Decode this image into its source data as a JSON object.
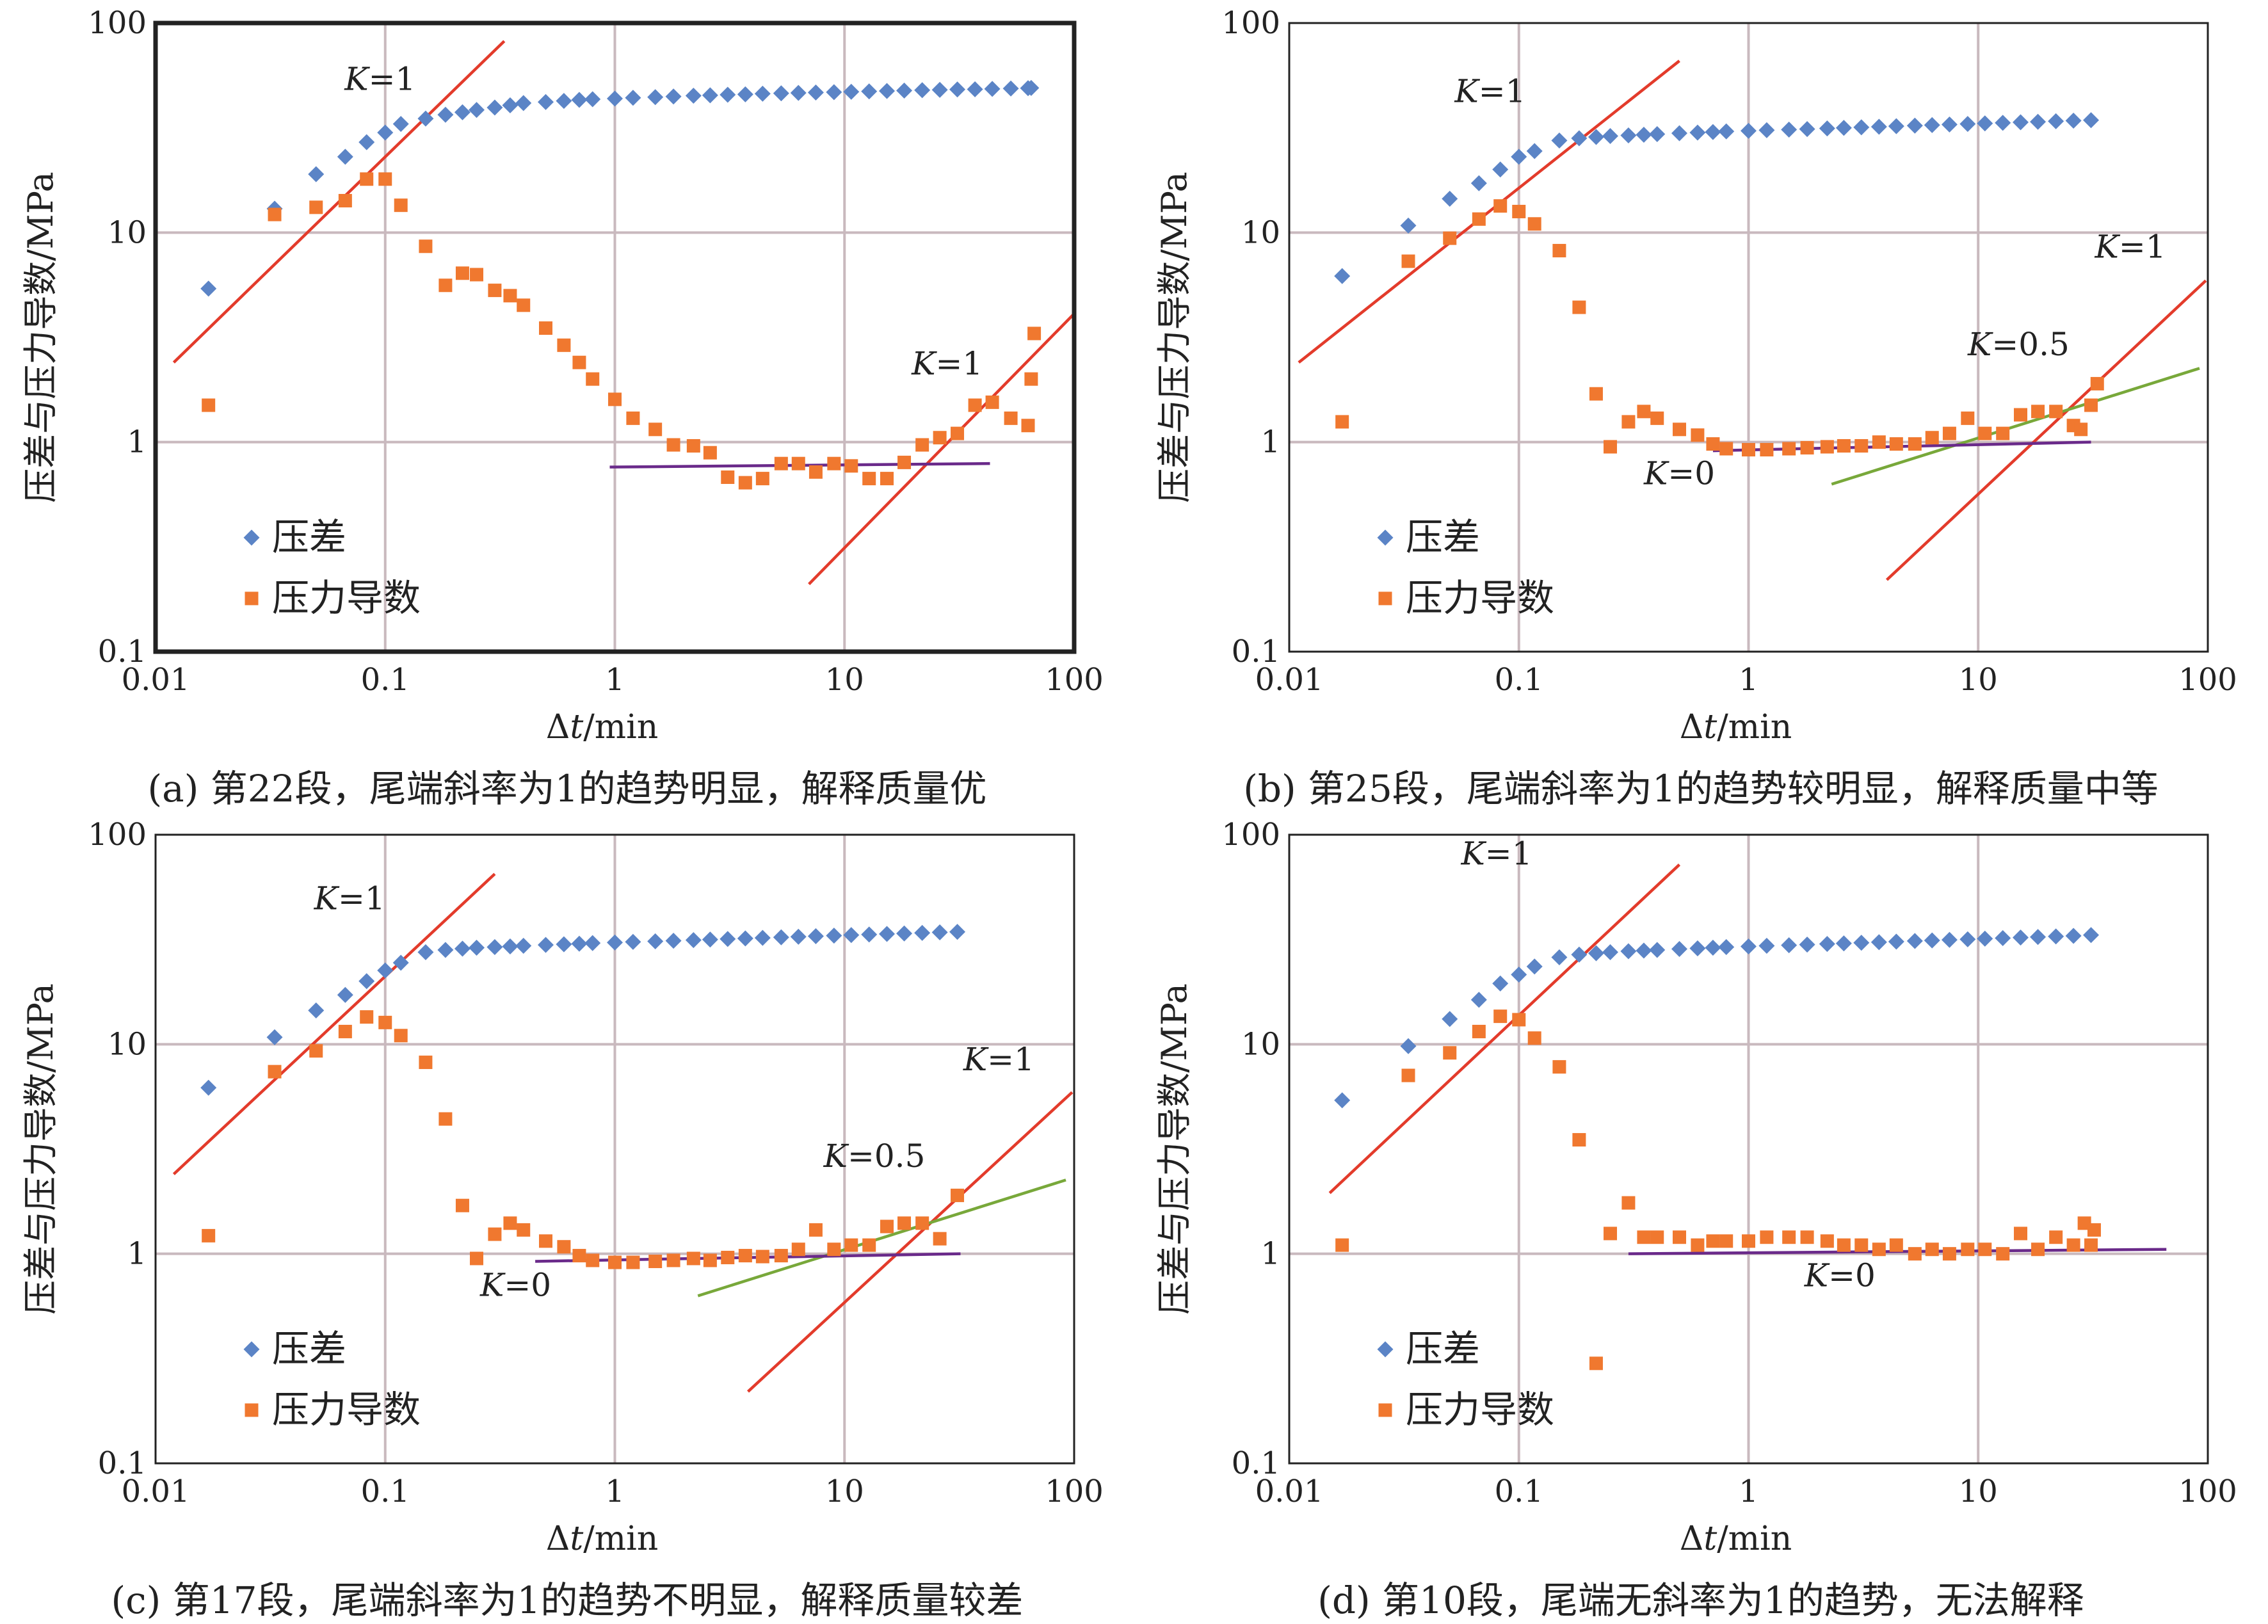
{
  "colors": {
    "pressure_diff": "#5b84c6",
    "pressure_derivative": "#f0782f",
    "slope_1": "#e33b2b",
    "slope_half": "#78a83a",
    "slope_0": "#6a2a8a",
    "gridline": "#c9b9be",
    "axis": "#222222"
  },
  "chart_data": [
    {
      "type": "scatter",
      "scale": "log-log",
      "xlabel_prefix": "Δ",
      "xlabel_var": "t",
      "xlabel_suffix": "/min",
      "ylabel": "压差与压力导数/MPa",
      "xlim": [
        0.01,
        100
      ],
      "ylim": [
        0.1,
        100
      ],
      "x_ticks": [
        "0.01",
        "0.1",
        "1",
        "10",
        "100"
      ],
      "y_ticks": [
        "0.1",
        "1",
        "10",
        "100"
      ],
      "grid": true,
      "legend_position": "left-middle",
      "frame": "heavy",
      "caption": "(a) 第22段，尾端斜率为1的趋势明显，解释质量优",
      "series": [
        {
          "name": "压差",
          "marker": "diamond",
          "color": "#5b84c6",
          "x": [
            0.017,
            0.033,
            0.05,
            0.067,
            0.083,
            0.1,
            0.117,
            0.15,
            0.183,
            0.217,
            0.25,
            0.3,
            0.35,
            0.4,
            0.5,
            0.6,
            0.7,
            0.8,
            1.0,
            1.2,
            1.5,
            1.8,
            2.2,
            2.6,
            3.1,
            3.7,
            4.4,
            5.3,
            6.3,
            7.5,
            9.0,
            10.7,
            12.8,
            15.3,
            18.2,
            21.8,
            26,
            31,
            37,
            44,
            53,
            63,
            65
          ],
          "y": [
            5.4,
            13,
            19,
            23,
            27,
            30,
            33,
            35,
            36.5,
            37.5,
            38.5,
            39.5,
            40.5,
            41.5,
            42,
            42.5,
            43,
            43.3,
            43.6,
            44,
            44.3,
            44.6,
            45,
            45.2,
            45.5,
            45.7,
            46,
            46.2,
            46.4,
            46.6,
            46.8,
            47,
            47.2,
            47.4,
            47.6,
            47.8,
            48,
            48.2,
            48.3,
            48.5,
            48.7,
            48.9,
            49
          ]
        },
        {
          "name": "压力导数",
          "marker": "square",
          "color": "#f0782f",
          "x": [
            0.017,
            0.033,
            0.05,
            0.067,
            0.083,
            0.1,
            0.117,
            0.15,
            0.183,
            0.217,
            0.25,
            0.3,
            0.35,
            0.4,
            0.5,
            0.6,
            0.7,
            0.8,
            1.0,
            1.2,
            1.5,
            1.8,
            2.2,
            2.6,
            3.1,
            3.7,
            4.4,
            5.3,
            6.3,
            7.5,
            9.0,
            10.7,
            12.8,
            15.3,
            18.2,
            21.8,
            26,
            31,
            37,
            44,
            53,
            63,
            65
          ],
          "y": [
            1.5,
            12.2,
            13.2,
            14.2,
            18,
            18,
            13.5,
            8.6,
            5.6,
            6.4,
            6.3,
            5.3,
            5.0,
            4.5,
            3.5,
            2.9,
            2.4,
            2.0,
            1.6,
            1.3,
            1.15,
            0.97,
            0.96,
            0.89,
            0.68,
            0.64,
            0.67,
            0.79,
            0.79,
            0.72,
            0.79,
            0.77,
            0.67,
            0.67,
            0.8,
            0.97,
            1.05,
            1.1,
            1.5,
            1.55,
            1.3,
            1.2,
            2.0
          ]
        },
        {
          "name": "",
          "marker": "square",
          "color": "#f0782f",
          "x": [
            67
          ],
          "y": [
            3.3
          ]
        }
      ],
      "lines": [
        {
          "color": "#e33b2b",
          "from": [
            0.012,
            2.4
          ],
          "to": [
            0.33,
            82
          ]
        },
        {
          "color": "#e33b2b",
          "from": [
            7,
            0.21
          ],
          "to": [
            100,
            4.1
          ]
        },
        {
          "color": "#6a2a8a",
          "from": [
            0.95,
            0.76
          ],
          "to": [
            43,
            0.79
          ]
        }
      ],
      "annotations": [
        {
          "text_italic": "K",
          "text": "=1",
          "at": [
            0.095,
            48
          ]
        },
        {
          "text_italic": "K",
          "text": "=1",
          "at": [
            28,
            2.1
          ]
        }
      ]
    },
    {
      "type": "scatter",
      "scale": "log-log",
      "xlabel_prefix": "Δ",
      "xlabel_var": "t",
      "xlabel_suffix": "/min",
      "ylabel": "压差与压力导数/MPa",
      "xlim": [
        0.01,
        100
      ],
      "ylim": [
        0.1,
        100
      ],
      "x_ticks": [
        "0.01",
        "0.1",
        "1",
        "10",
        "100"
      ],
      "y_ticks": [
        "0.1",
        "1",
        "10",
        "100"
      ],
      "grid": true,
      "legend_position": "left-middle",
      "frame": "light",
      "caption": "(b) 第25段，尾端斜率为1的趋势较明显，解释质量中等",
      "series": [
        {
          "name": "压差",
          "marker": "diamond",
          "color": "#5b84c6",
          "x": [
            0.017,
            0.033,
            0.05,
            0.067,
            0.083,
            0.1,
            0.117,
            0.15,
            0.183,
            0.217,
            0.25,
            0.3,
            0.35,
            0.4,
            0.5,
            0.6,
            0.7,
            0.8,
            1.0,
            1.2,
            1.5,
            1.8,
            2.2,
            2.6,
            3.1,
            3.7,
            4.4,
            5.3,
            6.3,
            7.5,
            9.0,
            10.7,
            12.8,
            15.3,
            18.2,
            21.8,
            26,
            31
          ],
          "y": [
            6.2,
            10.8,
            14.5,
            17.2,
            20,
            23,
            24.5,
            27.5,
            28.2,
            28.6,
            28.9,
            29.1,
            29.3,
            29.5,
            29.8,
            30,
            30.2,
            30.4,
            30.6,
            30.8,
            31,
            31.2,
            31.4,
            31.6,
            31.8,
            32,
            32.2,
            32.4,
            32.6,
            32.8,
            33,
            33.2,
            33.4,
            33.6,
            33.8,
            34,
            34.2,
            34.4
          ]
        },
        {
          "name": "压力导数",
          "marker": "square",
          "color": "#f0782f",
          "x": [
            0.017,
            0.033,
            0.05,
            0.067,
            0.083,
            0.1,
            0.117,
            0.15,
            0.183,
            0.217,
            0.25,
            0.3,
            0.35,
            0.4,
            0.5,
            0.6,
            0.7,
            0.8,
            1.0,
            1.2,
            1.5,
            1.8,
            2.2,
            2.6,
            3.1,
            3.7,
            4.4,
            5.3,
            6.3,
            7.5,
            9.0,
            10.7,
            12.8,
            15.3,
            18.2,
            21.8,
            26,
            31
          ],
          "y": [
            1.25,
            7.3,
            9.4,
            11.6,
            13.4,
            12.6,
            11,
            8.2,
            4.4,
            1.7,
            0.95,
            1.25,
            1.4,
            1.3,
            1.15,
            1.08,
            0.98,
            0.93,
            0.92,
            0.92,
            0.93,
            0.94,
            0.95,
            0.96,
            0.96,
            1.0,
            0.98,
            0.98,
            1.05,
            1.1,
            1.3,
            1.1,
            1.1,
            1.35,
            1.4,
            1.4,
            1.2,
            1.5
          ]
        },
        {
          "name": "",
          "marker": "square",
          "color": "#f0782f",
          "x": [
            28,
            33
          ],
          "y": [
            1.15,
            1.9
          ]
        }
      ],
      "lines": [
        {
          "color": "#e33b2b",
          "from": [
            0.011,
            2.4
          ],
          "to": [
            0.5,
            66
          ]
        },
        {
          "color": "#e33b2b",
          "from": [
            4,
            0.22
          ],
          "to": [
            98,
            5.9
          ]
        },
        {
          "color": "#78a83a",
          "from": [
            2.3,
            0.63
          ],
          "to": [
            92,
            2.25
          ]
        },
        {
          "color": "#6a2a8a",
          "from": [
            0.7,
            0.91
          ],
          "to": [
            31,
            1.0
          ]
        }
      ],
      "annotations": [
        {
          "text_italic": "K",
          "text": "=1",
          "at": [
            0.075,
            42
          ]
        },
        {
          "text_italic": "K",
          "text": "=1",
          "at": [
            46,
            7.6
          ]
        },
        {
          "text_italic": "K",
          "text": "=0.5",
          "at": [
            15,
            2.6
          ]
        },
        {
          "text_italic": "K",
          "text": "=0",
          "at": [
            0.5,
            0.63
          ]
        }
      ]
    },
    {
      "type": "scatter",
      "scale": "log-log",
      "xlabel_prefix": "Δ",
      "xlabel_var": "t",
      "xlabel_suffix": "/min",
      "ylabel": "压差与压力导数/MPa",
      "xlim": [
        0.01,
        100
      ],
      "ylim": [
        0.1,
        100
      ],
      "x_ticks": [
        "0.01",
        "0.1",
        "1",
        "10",
        "100"
      ],
      "y_ticks": [
        "0.1",
        "1",
        "10",
        "100"
      ],
      "grid": true,
      "legend_position": "left-middle",
      "frame": "light",
      "caption": "(c) 第17段，尾端斜率为1的趋势不明显，解释质量较差",
      "series": [
        {
          "name": "压差",
          "marker": "diamond",
          "color": "#5b84c6",
          "x": [
            0.017,
            0.033,
            0.05,
            0.067,
            0.083,
            0.1,
            0.117,
            0.15,
            0.183,
            0.217,
            0.25,
            0.3,
            0.35,
            0.4,
            0.5,
            0.6,
            0.7,
            0.8,
            1.0,
            1.2,
            1.5,
            1.8,
            2.2,
            2.6,
            3.1,
            3.7,
            4.4,
            5.3,
            6.3,
            7.5,
            9.0,
            10.7,
            12.8,
            15.3,
            18.2,
            21.8,
            26,
            31
          ],
          "y": [
            6.2,
            10.8,
            14.5,
            17.2,
            20,
            22.5,
            24.5,
            27.5,
            28.2,
            28.6,
            28.9,
            29.1,
            29.3,
            29.5,
            29.8,
            30,
            30.2,
            30.4,
            30.6,
            30.8,
            31,
            31.2,
            31.4,
            31.6,
            31.8,
            32,
            32.2,
            32.4,
            32.6,
            32.8,
            33,
            33.2,
            33.4,
            33.6,
            33.8,
            34,
            34.2,
            34.4
          ]
        },
        {
          "name": "压力导数",
          "marker": "square",
          "color": "#f0782f",
          "x": [
            0.017,
            0.033,
            0.05,
            0.067,
            0.083,
            0.1,
            0.117,
            0.15,
            0.183,
            0.217,
            0.25,
            0.3,
            0.35,
            0.4,
            0.5,
            0.6,
            0.7,
            0.8,
            1.0,
            1.2,
            1.5,
            1.8,
            2.2,
            2.6,
            3.1,
            3.7,
            4.4,
            5.3,
            6.3,
            7.5,
            9.0,
            10.7,
            12.8,
            15.3,
            18.2,
            21.8,
            26,
            31
          ],
          "y": [
            1.22,
            7.4,
            9.3,
            11.5,
            13.5,
            12.7,
            11,
            8.2,
            4.4,
            1.7,
            0.95,
            1.24,
            1.4,
            1.3,
            1.15,
            1.08,
            0.98,
            0.93,
            0.91,
            0.91,
            0.92,
            0.93,
            0.95,
            0.93,
            0.96,
            0.98,
            0.97,
            0.98,
            1.05,
            1.3,
            1.05,
            1.1,
            1.1,
            1.35,
            1.4,
            1.4,
            1.18,
            1.9
          ]
        }
      ],
      "lines": [
        {
          "color": "#e33b2b",
          "from": [
            0.012,
            2.4
          ],
          "to": [
            0.3,
            65
          ]
        },
        {
          "color": "#e33b2b",
          "from": [
            3.8,
            0.22
          ],
          "to": [
            98,
            5.9
          ]
        },
        {
          "color": "#78a83a",
          "from": [
            2.3,
            0.63
          ],
          "to": [
            92,
            2.25
          ]
        },
        {
          "color": "#6a2a8a",
          "from": [
            0.45,
            0.92
          ],
          "to": [
            32,
            1.0
          ]
        }
      ],
      "annotations": [
        {
          "text_italic": "K",
          "text": "=1",
          "at": [
            0.07,
            44
          ]
        },
        {
          "text_italic": "K",
          "text": "=1",
          "at": [
            47,
            7.5
          ]
        },
        {
          "text_italic": "K",
          "text": "=0.5",
          "at": [
            13.5,
            2.6
          ]
        },
        {
          "text_italic": "K",
          "text": "=0",
          "at": [
            0.37,
            0.63
          ]
        }
      ]
    },
    {
      "type": "scatter",
      "scale": "log-log",
      "xlabel_prefix": "Δ",
      "xlabel_var": "t",
      "xlabel_suffix": "/min",
      "ylabel": "压差与压力导数/MPa",
      "xlim": [
        0.01,
        100
      ],
      "ylim": [
        0.1,
        100
      ],
      "x_ticks": [
        "0.01",
        "0.1",
        "1",
        "10",
        "100"
      ],
      "y_ticks": [
        "0.1",
        "1",
        "10",
        "100"
      ],
      "grid": true,
      "legend_position": "left-middle",
      "frame": "light",
      "caption": "(d) 第10段，尾端无斜率为1的趋势，无法解释",
      "series": [
        {
          "name": "压差",
          "marker": "diamond",
          "color": "#5b84c6",
          "x": [
            0.017,
            0.033,
            0.05,
            0.067,
            0.083,
            0.1,
            0.117,
            0.15,
            0.183,
            0.217,
            0.25,
            0.3,
            0.35,
            0.4,
            0.5,
            0.6,
            0.7,
            0.8,
            1.0,
            1.2,
            1.5,
            1.8,
            2.2,
            2.6,
            3.1,
            3.7,
            4.4,
            5.3,
            6.3,
            7.5,
            9.0,
            10.7,
            12.8,
            15.3,
            18.2,
            21.8,
            26,
            31
          ],
          "y": [
            5.4,
            9.8,
            13.2,
            16.3,
            19.5,
            21.5,
            23.5,
            26,
            26.8,
            27.2,
            27.5,
            27.8,
            28,
            28.2,
            28.5,
            28.7,
            28.9,
            29.1,
            29.3,
            29.5,
            29.7,
            29.9,
            30.1,
            30.3,
            30.5,
            30.7,
            30.9,
            31.1,
            31.3,
            31.5,
            31.7,
            31.9,
            32.1,
            32.3,
            32.5,
            32.7,
            32.9,
            33.2
          ]
        },
        {
          "name": "压力导数",
          "marker": "square",
          "color": "#f0782f",
          "x": [
            0.017,
            0.033,
            0.05,
            0.067,
            0.083,
            0.1,
            0.117,
            0.15,
            0.183,
            0.217,
            0.25,
            0.3,
            0.35,
            0.4,
            0.5,
            0.6,
            0.7,
            0.8,
            1.0,
            1.2,
            1.5,
            1.8,
            2.2,
            2.6,
            3.1,
            3.7,
            4.4,
            5.3,
            6.3,
            7.5,
            9.0,
            10.7,
            12.8,
            15.3,
            18.2,
            21.8,
            26,
            31
          ],
          "y": [
            1.1,
            7.1,
            9.1,
            11.5,
            13.6,
            13.1,
            10.7,
            7.8,
            3.5,
            0.3,
            1.25,
            1.75,
            1.2,
            1.2,
            1.2,
            1.1,
            1.15,
            1.15,
            1.15,
            1.2,
            1.2,
            1.2,
            1.15,
            1.1,
            1.1,
            1.05,
            1.1,
            1.0,
            1.05,
            1.0,
            1.05,
            1.05,
            1.0,
            1.25,
            1.05,
            1.2,
            1.1,
            1.1
          ]
        },
        {
          "name": "",
          "marker": "square",
          "color": "#f0782f",
          "x": [
            29,
            32
          ],
          "y": [
            1.4,
            1.3
          ]
        }
      ],
      "lines": [
        {
          "color": "#e33b2b",
          "from": [
            0.015,
            1.95
          ],
          "to": [
            0.5,
            72
          ]
        },
        {
          "color": "#6a2a8a",
          "from": [
            0.3,
            1.0
          ],
          "to": [
            66,
            1.05
          ]
        }
      ],
      "annotations": [
        {
          "text_italic": "K",
          "text": "=1",
          "at": [
            0.08,
            72
          ]
        },
        {
          "text_italic": "K",
          "text": "=0",
          "at": [
            2.5,
            0.7
          ]
        }
      ]
    }
  ]
}
